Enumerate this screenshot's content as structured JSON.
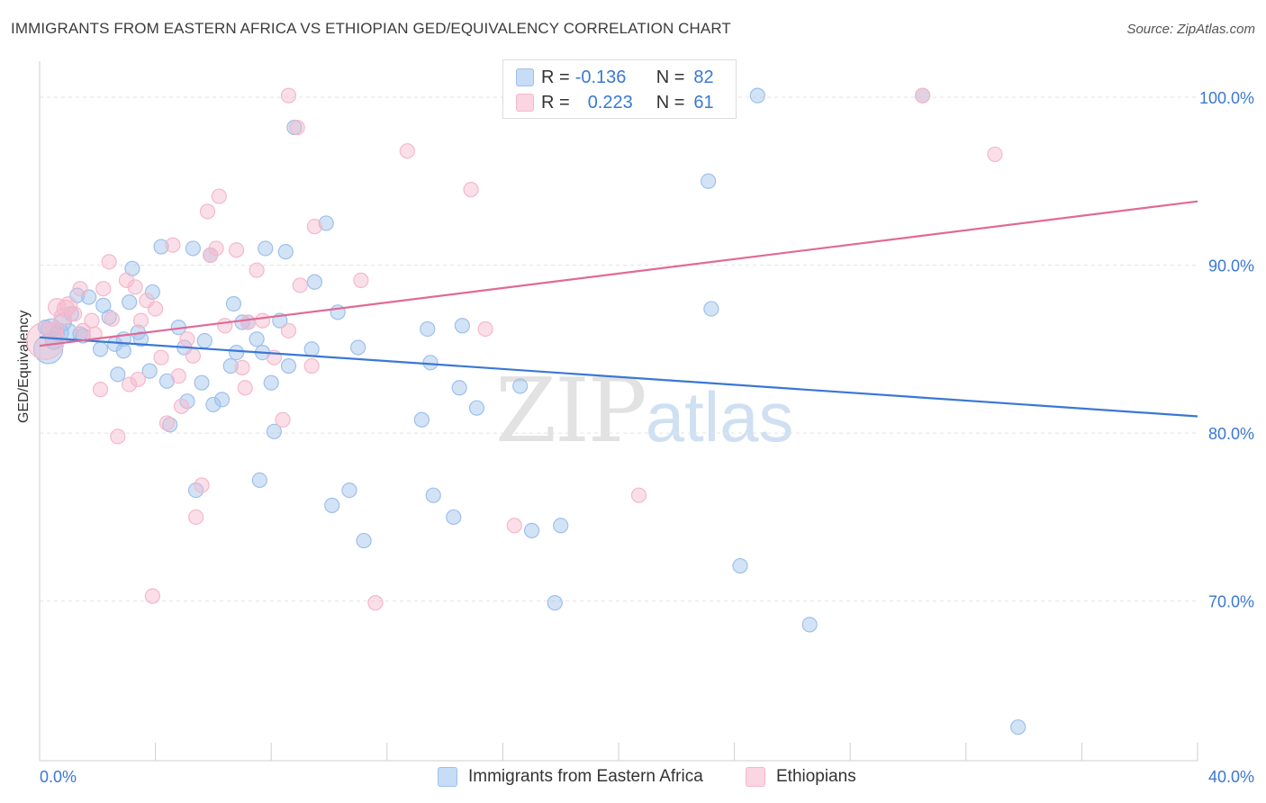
{
  "title": "IMMIGRANTS FROM EASTERN AFRICA VS ETHIOPIAN GED/EQUIVALENCY CORRELATION CHART",
  "source": "Source: ZipAtlas.com",
  "watermark": {
    "zip": "ZIP",
    "atlas": "atlas"
  },
  "legend_top": {
    "rows": [
      {
        "r_label": "R = ",
        "r_value": "-0.136",
        "n_label": "N = ",
        "n_value": "82",
        "color": "#9dc0ec"
      },
      {
        "r_label": "R = ",
        "r_value": "0.223",
        "n_label": "N = ",
        "n_value": "61",
        "color": "#f5b8cb"
      }
    ]
  },
  "legend_bottom": {
    "items": [
      {
        "label": "Immigrants from Eastern Africa",
        "color": "#9dc0ec"
      },
      {
        "label": "Ethiopians",
        "color": "#f5b8cb"
      }
    ]
  },
  "chart_data": {
    "type": "scatter",
    "title": "IMMIGRANTS FROM EASTERN AFRICA VS ETHIOPIAN GED/EQUIVALENCY CORRELATION CHART",
    "xlabel": "",
    "ylabel": "GED/Equivalency",
    "xlim": [
      0,
      40
    ],
    "ylim": [
      60.5,
      101.5
    ],
    "x_tick_labels": [
      "0.0%",
      "40.0%"
    ],
    "y_ticks": [
      70,
      80,
      90,
      100
    ],
    "y_tick_labels": [
      "70.0%",
      "80.0%",
      "90.0%",
      "100.0%"
    ],
    "grid": true,
    "legend_position": "top-center",
    "series": [
      {
        "name": "Immigrants from Eastern Africa",
        "color": "#3a78d4",
        "fill": "#9dc0ec",
        "trend": {
          "x": [
            0,
            40
          ],
          "y": [
            85.7,
            81.0
          ]
        },
        "points": [
          [
            0.3,
            85.0
          ],
          [
            0.4,
            86.2
          ],
          [
            0.5,
            85.5
          ],
          [
            0.7,
            86.0
          ],
          [
            0.8,
            86.6
          ],
          [
            1.0,
            86.0
          ],
          [
            1.1,
            87.1
          ],
          [
            1.3,
            88.2
          ],
          [
            1.5,
            85.8
          ],
          [
            1.7,
            88.1
          ],
          [
            2.1,
            85.0
          ],
          [
            2.2,
            87.6
          ],
          [
            2.4,
            86.9
          ],
          [
            2.6,
            85.3
          ],
          [
            2.7,
            83.5
          ],
          [
            2.9,
            85.6
          ],
          [
            3.1,
            87.8
          ],
          [
            3.2,
            89.8
          ],
          [
            3.4,
            86.0
          ],
          [
            3.5,
            85.6
          ],
          [
            3.8,
            83.7
          ],
          [
            3.9,
            88.4
          ],
          [
            4.2,
            91.1
          ],
          [
            4.4,
            83.1
          ],
          [
            4.5,
            80.5
          ],
          [
            4.8,
            86.3
          ],
          [
            5.0,
            85.1
          ],
          [
            5.1,
            81.9
          ],
          [
            5.3,
            91.0
          ],
          [
            5.4,
            76.6
          ],
          [
            5.6,
            83.0
          ],
          [
            5.7,
            85.5
          ],
          [
            5.9,
            90.6
          ],
          [
            6.0,
            81.7
          ],
          [
            6.3,
            82.0
          ],
          [
            6.6,
            84.0
          ],
          [
            6.7,
            87.7
          ],
          [
            6.8,
            84.8
          ],
          [
            7.0,
            86.6
          ],
          [
            7.2,
            86.6
          ],
          [
            7.5,
            85.6
          ],
          [
            7.6,
            77.2
          ],
          [
            7.7,
            84.8
          ],
          [
            7.8,
            91.0
          ],
          [
            8.0,
            83.0
          ],
          [
            8.1,
            80.1
          ],
          [
            8.3,
            86.7
          ],
          [
            8.5,
            90.8
          ],
          [
            8.6,
            84.0
          ],
          [
            8.8,
            98.2
          ],
          [
            9.4,
            85.0
          ],
          [
            9.5,
            89.0
          ],
          [
            9.9,
            92.5
          ],
          [
            10.1,
            75.7
          ],
          [
            10.3,
            87.2
          ],
          [
            10.7,
            76.6
          ],
          [
            11.0,
            85.1
          ],
          [
            11.2,
            73.6
          ],
          [
            13.2,
            80.8
          ],
          [
            13.4,
            86.2
          ],
          [
            13.5,
            84.2
          ],
          [
            13.6,
            76.3
          ],
          [
            14.3,
            75.0
          ],
          [
            14.5,
            82.7
          ],
          [
            14.6,
            86.4
          ],
          [
            15.1,
            81.5
          ],
          [
            16.6,
            82.8
          ],
          [
            17.0,
            74.2
          ],
          [
            17.4,
            100.1
          ],
          [
            17.8,
            69.9
          ],
          [
            18.0,
            74.5
          ],
          [
            23.1,
            95.0
          ],
          [
            23.2,
            87.4
          ],
          [
            24.2,
            72.1
          ],
          [
            24.8,
            100.1
          ],
          [
            26.6,
            68.6
          ],
          [
            30.5,
            100.1
          ],
          [
            33.8,
            62.5
          ],
          [
            0.2,
            86.3
          ],
          [
            0.6,
            85.9
          ],
          [
            1.4,
            85.9
          ],
          [
            2.9,
            84.9
          ]
        ],
        "sizes": [
          20,
          14,
          12,
          12,
          12,
          12,
          10,
          10,
          10,
          10,
          10,
          10,
          10,
          10,
          10,
          10,
          10,
          10,
          10,
          10,
          10,
          10,
          10,
          10,
          10,
          10,
          10,
          10,
          10,
          10,
          10,
          10,
          10,
          10,
          10,
          10,
          10,
          10,
          10,
          10,
          10,
          10,
          10,
          10,
          10,
          10,
          10,
          10,
          10,
          10,
          10,
          10,
          10,
          10,
          10,
          10,
          10,
          10,
          10,
          10,
          10,
          10,
          10,
          10,
          10,
          10,
          10,
          10,
          10,
          10,
          10,
          10,
          10,
          10,
          10,
          10,
          10,
          10,
          10,
          10,
          10,
          10
        ]
      },
      {
        "name": "Ethiopians",
        "color": "#e06a95",
        "fill": "#f5b8cb",
        "trend": {
          "x": [
            0,
            40
          ],
          "y": [
            85.2,
            93.8
          ]
        },
        "points": [
          [
            0.2,
            85.5
          ],
          [
            0.5,
            86.1
          ],
          [
            0.6,
            87.5
          ],
          [
            0.8,
            86.9
          ],
          [
            0.9,
            87.4
          ],
          [
            1.0,
            87.6
          ],
          [
            1.2,
            87.1
          ],
          [
            1.4,
            88.6
          ],
          [
            1.5,
            86.1
          ],
          [
            1.8,
            86.7
          ],
          [
            1.9,
            85.9
          ],
          [
            2.1,
            82.6
          ],
          [
            2.2,
            88.6
          ],
          [
            2.4,
            90.2
          ],
          [
            2.5,
            86.8
          ],
          [
            2.7,
            79.8
          ],
          [
            3.0,
            89.1
          ],
          [
            3.1,
            82.9
          ],
          [
            3.3,
            88.7
          ],
          [
            3.4,
            83.2
          ],
          [
            3.5,
            86.7
          ],
          [
            3.7,
            87.9
          ],
          [
            3.9,
            70.3
          ],
          [
            4.0,
            87.4
          ],
          [
            4.2,
            84.5
          ],
          [
            4.4,
            80.6
          ],
          [
            4.6,
            91.2
          ],
          [
            4.8,
            83.4
          ],
          [
            4.9,
            81.6
          ],
          [
            5.1,
            85.6
          ],
          [
            5.3,
            84.6
          ],
          [
            5.4,
            75.0
          ],
          [
            5.6,
            76.9
          ],
          [
            5.8,
            93.2
          ],
          [
            5.9,
            90.6
          ],
          [
            6.1,
            91.0
          ],
          [
            6.2,
            94.1
          ],
          [
            6.4,
            86.4
          ],
          [
            6.8,
            90.9
          ],
          [
            7.0,
            83.9
          ],
          [
            7.1,
            82.7
          ],
          [
            7.2,
            86.6
          ],
          [
            7.5,
            89.7
          ],
          [
            7.7,
            86.7
          ],
          [
            8.1,
            84.5
          ],
          [
            8.4,
            80.8
          ],
          [
            8.6,
            86.1
          ],
          [
            8.6,
            100.1
          ],
          [
            8.9,
            98.2
          ],
          [
            9.0,
            88.8
          ],
          [
            9.4,
            84.0
          ],
          [
            9.5,
            92.3
          ],
          [
            11.1,
            89.1
          ],
          [
            11.6,
            69.9
          ],
          [
            12.7,
            96.8
          ],
          [
            14.9,
            94.5
          ],
          [
            15.4,
            86.2
          ],
          [
            16.4,
            74.5
          ],
          [
            20.7,
            76.3
          ],
          [
            30.5,
            100.1
          ],
          [
            33.0,
            96.6
          ]
        ],
        "sizes": [
          26,
          12,
          12,
          12,
          12,
          12,
          10,
          10,
          10,
          10,
          10,
          10,
          10,
          10,
          10,
          10,
          10,
          10,
          10,
          10,
          10,
          10,
          10,
          10,
          10,
          10,
          10,
          10,
          10,
          10,
          10,
          10,
          10,
          10,
          10,
          10,
          10,
          10,
          10,
          10,
          10,
          10,
          10,
          10,
          10,
          10,
          10,
          10,
          10,
          10,
          10,
          10,
          10,
          10,
          10,
          10,
          10,
          10,
          10,
          10,
          10
        ]
      }
    ]
  }
}
